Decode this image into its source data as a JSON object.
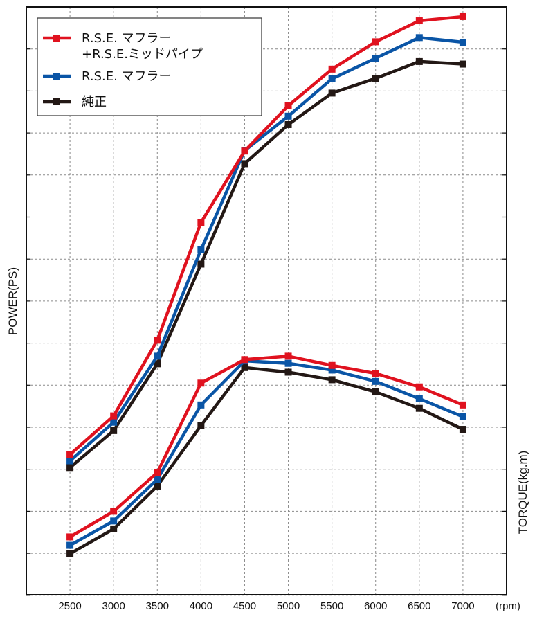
{
  "chart_data": {
    "type": "line",
    "ylabel_left": "POWER(PS)",
    "ylabel_right": "TORQUE(kg.m)",
    "xunit": "(rpm)",
    "x": [
      2500,
      3000,
      3500,
      4000,
      4500,
      5000,
      5500,
      6000,
      6500,
      7000
    ],
    "xlim": [
      2000,
      7500
    ],
    "y_range": [
      0,
      14
    ],
    "grid": true,
    "legend_position": "top-left",
    "legend": [
      {
        "label_lines": [
          "R.S.E. マフラー",
          "+R.S.E.ミッドパイプ"
        ],
        "color": "#e0121f"
      },
      {
        "label_lines": [
          "R.S.E. マフラー"
        ],
        "color": "#0a55a6"
      },
      {
        "label_lines": [
          "純正"
        ],
        "color": "#231815"
      }
    ],
    "series": [
      {
        "name": "R.S.E. マフラー +R.S.E.ミッドパイプ (power)",
        "color": "#e0121f",
        "values": [
          3.35,
          4.27,
          6.07,
          8.87,
          10.57,
          11.65,
          12.52,
          13.17,
          13.67,
          13.77
        ]
      },
      {
        "name": "R.S.E. マフラー (power)",
        "color": "#0a55a6",
        "values": [
          3.2,
          4.12,
          5.69,
          8.22,
          10.58,
          11.4,
          12.29,
          12.78,
          13.27,
          13.16
        ]
      },
      {
        "name": "純正 (power)",
        "color": "#231815",
        "values": [
          3.04,
          3.92,
          5.51,
          7.88,
          10.27,
          11.2,
          11.95,
          12.3,
          12.7,
          12.64
        ]
      },
      {
        "name": "R.S.E. マフラー +R.S.E.ミッドパイプ (torque)",
        "color": "#e0121f",
        "values": [
          1.39,
          2.0,
          2.92,
          5.05,
          5.61,
          5.69,
          5.47,
          5.28,
          4.96,
          4.53
        ]
      },
      {
        "name": "R.S.E. マフラー (torque)",
        "color": "#0a55a6",
        "values": [
          1.19,
          1.77,
          2.76,
          4.53,
          5.58,
          5.52,
          5.36,
          5.09,
          4.68,
          4.25
        ]
      },
      {
        "name": "純正 (torque)",
        "color": "#231815",
        "values": [
          0.99,
          1.58,
          2.6,
          4.04,
          5.42,
          5.31,
          5.13,
          4.84,
          4.45,
          3.95
        ]
      }
    ]
  }
}
